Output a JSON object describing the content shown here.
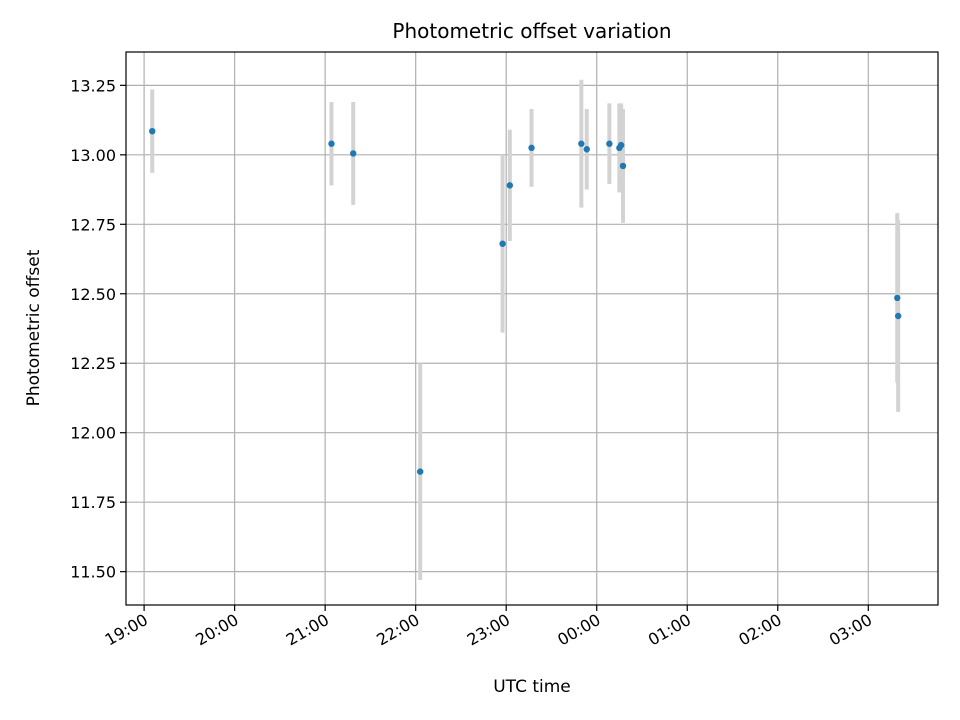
{
  "chart_data": {
    "type": "scatter",
    "title": "Photometric offset variation",
    "xlabel": "UTC time",
    "ylabel": "Photometric offset",
    "grid": true,
    "x_unit": "UTC hour-of-night (hours after 00:00 of first day; >24 means next day)",
    "xlim": [
      18.8,
      27.77
    ],
    "ylim": [
      11.38,
      13.37
    ],
    "x_ticks": [
      19,
      20,
      21,
      22,
      23,
      24,
      25,
      26,
      27
    ],
    "x_tick_labels": [
      "19:00",
      "20:00",
      "21:00",
      "22:00",
      "23:00",
      "00:00",
      "01:00",
      "02:00",
      "03:00"
    ],
    "y_ticks": [
      11.5,
      11.75,
      12.0,
      12.25,
      12.5,
      12.75,
      13.0,
      13.25
    ],
    "y_tick_labels": [
      "11.50",
      "11.75",
      "12.00",
      "12.25",
      "12.50",
      "12.75",
      "13.00",
      "13.25"
    ],
    "marker_color": "#1f77b4",
    "errorbar_color": "#d3d3d3",
    "points": [
      {
        "time": "19:05",
        "x": 19.09,
        "y": 13.085,
        "err": 0.15
      },
      {
        "time": "21:04",
        "x": 21.07,
        "y": 13.04,
        "err": 0.15
      },
      {
        "time": "21:18",
        "x": 21.31,
        "y": 13.005,
        "err": 0.185
      },
      {
        "time": "22:03",
        "x": 22.05,
        "y": 11.86,
        "err": 0.39
      },
      {
        "time": "22:57",
        "x": 22.96,
        "y": 12.68,
        "err": 0.32
      },
      {
        "time": "23:02",
        "x": 23.04,
        "y": 12.89,
        "err": 0.2
      },
      {
        "time": "23:17",
        "x": 23.28,
        "y": 13.025,
        "err": 0.14
      },
      {
        "time": "23:50",
        "x": 23.83,
        "y": 13.04,
        "err": 0.23
      },
      {
        "time": "23:53",
        "x": 23.89,
        "y": 13.02,
        "err": 0.145
      },
      {
        "time": "00:08",
        "x": 24.14,
        "y": 13.04,
        "err": 0.145
      },
      {
        "time": "00:15",
        "x": 24.25,
        "y": 13.025,
        "err": 0.16
      },
      {
        "time": "00:16",
        "x": 24.27,
        "y": 13.035,
        "err": 0.15
      },
      {
        "time": "00:17",
        "x": 24.29,
        "y": 12.96,
        "err": 0.205
      },
      {
        "time": "03:19",
        "x": 27.32,
        "y": 12.485,
        "err": 0.305
      },
      {
        "time": "03:20",
        "x": 27.33,
        "y": 12.42,
        "err": 0.345
      }
    ]
  }
}
